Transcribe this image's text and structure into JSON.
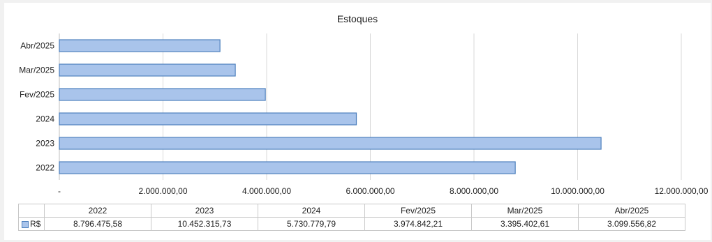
{
  "chart_data": {
    "type": "bar",
    "orientation": "horizontal",
    "title": "Estoques",
    "categories": [
      "2022",
      "2023",
      "2024",
      "Fev/2025",
      "Mar/2025",
      "Abr/2025"
    ],
    "series": [
      {
        "name": "R$",
        "values": [
          8796475.58,
          10452315.73,
          5730779.79,
          3974842.21,
          3395402.61,
          3099556.82
        ],
        "value_labels": [
          "8.796.475,58",
          "10.452.315,73",
          "5.730.779,79",
          "3.974.842,21",
          "3.395.402,61",
          "3.099.556,82"
        ]
      }
    ],
    "xlim": [
      0,
      12000000
    ],
    "x_ticks": [
      0,
      2000000,
      4000000,
      6000000,
      8000000,
      10000000,
      12000000
    ],
    "x_tick_labels": [
      "-",
      "2.000.000,00",
      "4.000.000,00",
      "6.000.000,00",
      "8.000.000,00",
      "10.000.000,00",
      "12.000.000,00"
    ],
    "grid": true,
    "data_table": true,
    "bar_fill": "#a9c4eb",
    "bar_stroke": "#4f81bd",
    "grid_color": "#d9d9d9"
  }
}
